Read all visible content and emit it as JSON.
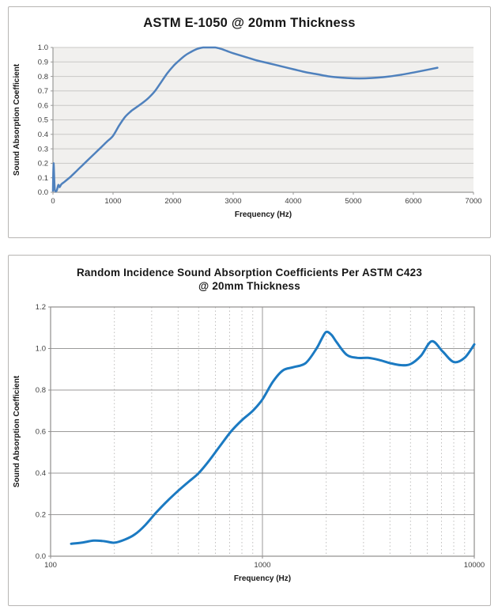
{
  "page": {
    "background": "#ffffff"
  },
  "chart_data": [
    {
      "type": "line",
      "title": "ASTM E-1050 @ 20mm Thickness",
      "xlabel": "Frequency (Hz)",
      "ylabel": "Sound Absorption Coefficient",
      "xscale": "linear",
      "xlim": [
        0,
        7000
      ],
      "ylim": [
        0,
        1.0
      ],
      "xticks": [
        0,
        1000,
        2000,
        3000,
        4000,
        5000,
        6000,
        7000
      ],
      "xtick_labels": [
        "0",
        "1000",
        "2000",
        "3000",
        "4000",
        "5000",
        "6000",
        "7000"
      ],
      "yticks": [
        0,
        0.1,
        0.2,
        0.3,
        0.4,
        0.5,
        0.6,
        0.7,
        0.8,
        0.9,
        1.0
      ],
      "ytick_labels": [
        "0.0",
        "0.1",
        "0.2",
        "0.3",
        "0.4",
        "0.5",
        "0.6",
        "0.7",
        "0.8",
        "0.9",
        "1.0"
      ],
      "grid": "horizontal",
      "legend": "none",
      "colors": {
        "line": "#4f81bd",
        "plot_bg": "#f1f0ee",
        "grid": "#c9c8c6",
        "axis": "#9a9998",
        "tick_text": "#3d3d3d",
        "title_text": "#171717"
      },
      "series": [
        {
          "name": "Sound Absorption Coefficient",
          "x": [
            0,
            10,
            30,
            60,
            90,
            110,
            140,
            200,
            300,
            400,
            500,
            600,
            700,
            800,
            900,
            1000,
            1100,
            1200,
            1300,
            1400,
            1500,
            1600,
            1700,
            1800,
            1900,
            2000,
            2100,
            2200,
            2300,
            2400,
            2500,
            2600,
            2700,
            2800,
            2900,
            3000,
            3200,
            3400,
            3600,
            3800,
            4000,
            4200,
            4400,
            4600,
            4800,
            5000,
            5200,
            5400,
            5600,
            5800,
            6000,
            6200,
            6400
          ],
          "y": [
            0.01,
            0.2,
            0.02,
            0.01,
            0.05,
            0.035,
            0.055,
            0.075,
            0.11,
            0.15,
            0.19,
            0.23,
            0.27,
            0.31,
            0.35,
            0.39,
            0.46,
            0.52,
            0.56,
            0.59,
            0.62,
            0.655,
            0.7,
            0.76,
            0.82,
            0.87,
            0.91,
            0.945,
            0.97,
            0.99,
            1.0,
            1.0,
            1.0,
            0.99,
            0.975,
            0.96,
            0.935,
            0.91,
            0.89,
            0.87,
            0.85,
            0.83,
            0.815,
            0.8,
            0.792,
            0.787,
            0.787,
            0.792,
            0.8,
            0.812,
            0.827,
            0.843,
            0.86
          ]
        }
      ]
    },
    {
      "type": "line",
      "title": "Random Incidence Sound Absorption Coefficients Per ASTM C423",
      "title_line2": "@ 20mm Thickness",
      "xlabel": "Frequency (Hz)",
      "ylabel": "Sound Absorption Coefficient",
      "xscale": "log",
      "xlim": [
        100,
        10000
      ],
      "ylim": [
        0,
        1.2
      ],
      "xticks": [
        100,
        1000,
        10000
      ],
      "xtick_labels": [
        "100",
        "1000",
        "10000"
      ],
      "yticks": [
        0,
        0.2,
        0.4,
        0.6,
        0.8,
        1.0,
        1.2
      ],
      "ytick_labels": [
        "0.0",
        "0.2",
        "0.4",
        "0.6",
        "0.8",
        "1.0",
        "1.2"
      ],
      "grid": "both",
      "minor_grid": "log-decades-dashed",
      "legend": "none",
      "colors": {
        "line": "#1b7ac2",
        "plot_bg": "#ffffff",
        "grid": "#9b9a99",
        "minor_grid": "#bfbebd",
        "axis": "#8f8e8d",
        "tick_text": "#3d3d3d",
        "title_text": "#171717"
      },
      "series": [
        {
          "name": "Sound Absorption Coefficient",
          "x": [
            125,
            140,
            160,
            180,
            200,
            224,
            250,
            280,
            315,
            355,
            400,
            450,
            500,
            560,
            630,
            710,
            800,
            900,
            1000,
            1120,
            1250,
            1400,
            1600,
            1800,
            1900,
            2000,
            2120,
            2240,
            2500,
            2800,
            3150,
            3550,
            4000,
            4500,
            5000,
            5600,
            6300,
            7100,
            8000,
            9000,
            10000
          ],
          "y": [
            0.06,
            0.065,
            0.075,
            0.072,
            0.065,
            0.08,
            0.105,
            0.15,
            0.21,
            0.265,
            0.315,
            0.36,
            0.4,
            0.46,
            0.53,
            0.6,
            0.655,
            0.7,
            0.755,
            0.84,
            0.895,
            0.91,
            0.93,
            1.0,
            1.045,
            1.08,
            1.065,
            1.03,
            0.97,
            0.955,
            0.955,
            0.945,
            0.93,
            0.92,
            0.925,
            0.965,
            1.035,
            0.985,
            0.935,
            0.955,
            1.02
          ]
        }
      ]
    }
  ]
}
